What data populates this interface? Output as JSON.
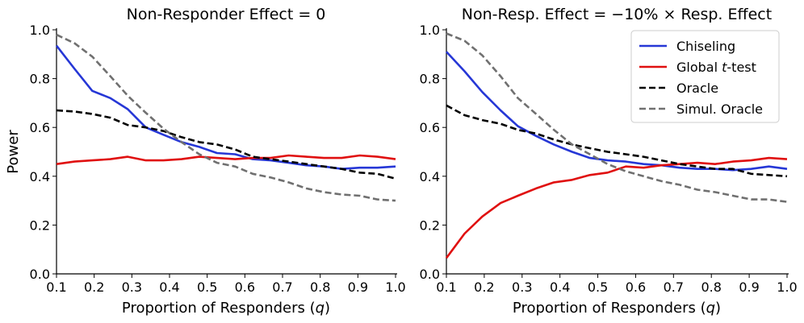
{
  "chart_data": [
    {
      "type": "line",
      "title": "Non-Responder Effect $= 0$",
      "title_display": "Non-Responder Effect  = 0",
      "xlabel": "Proportion of Responders (q)",
      "ylabel": "Power",
      "xlim": [
        0.1,
        1.0
      ],
      "ylim": [
        0.0,
        1.0
      ],
      "xticks": [
        "0.1",
        "0.2",
        "0.3",
        "0.4",
        "0.5",
        "0.6",
        "0.7",
        "0.8",
        "0.9",
        "1.0"
      ],
      "yticks": [
        "0.0",
        "0.2",
        "0.4",
        "0.6",
        "0.8",
        "1.0"
      ],
      "x": [
        0.1,
        0.148,
        0.195,
        0.243,
        0.289,
        0.337,
        0.384,
        0.432,
        0.479,
        0.526,
        0.574,
        0.621,
        0.668,
        0.716,
        0.763,
        0.81,
        0.857,
        0.905,
        0.952,
        1.0
      ],
      "series": [
        {
          "name": "Chiseling",
          "color": "#2637d6",
          "dash": "solid",
          "values": [
            0.935,
            0.84,
            0.75,
            0.72,
            0.675,
            0.6,
            0.57,
            0.54,
            0.52,
            0.495,
            0.49,
            0.47,
            0.465,
            0.455,
            0.445,
            0.44,
            0.43,
            0.435,
            0.435,
            0.44
          ]
        },
        {
          "name": "Global t-test",
          "color": "#e01010",
          "dash": "solid",
          "values": [
            0.45,
            0.46,
            0.465,
            0.47,
            0.48,
            0.465,
            0.465,
            0.47,
            0.48,
            0.475,
            0.47,
            0.475,
            0.475,
            0.485,
            0.48,
            0.475,
            0.475,
            0.485,
            0.48,
            0.47
          ]
        },
        {
          "name": "Oracle",
          "color": "#000000",
          "dash": "dashed",
          "values": [
            0.67,
            0.665,
            0.655,
            0.64,
            0.61,
            0.6,
            0.585,
            0.56,
            0.54,
            0.53,
            0.51,
            0.48,
            0.47,
            0.46,
            0.45,
            0.44,
            0.43,
            0.415,
            0.41,
            0.39
          ]
        },
        {
          "name": "Simul. Oracle",
          "color": "#707070",
          "dash": "dashed",
          "values": [
            0.98,
            0.945,
            0.89,
            0.81,
            0.73,
            0.66,
            0.595,
            0.54,
            0.49,
            0.455,
            0.44,
            0.41,
            0.395,
            0.375,
            0.35,
            0.335,
            0.325,
            0.32,
            0.305,
            0.3
          ]
        }
      ]
    },
    {
      "type": "line",
      "title": "Non-Resp. Effect $= -10\\% \\times$ Resp. Effect",
      "title_display": "Non-Resp. Effect  = −10% ×  Resp. Effect",
      "xlabel": "Proportion of Responders (q)",
      "ylabel": "",
      "xlim": [
        0.1,
        1.0
      ],
      "ylim": [
        0.0,
        1.0
      ],
      "xticks": [
        "0.1",
        "0.2",
        "0.3",
        "0.4",
        "0.5",
        "0.6",
        "0.7",
        "0.8",
        "0.9",
        "1.0"
      ],
      "yticks": [
        "0.0",
        "0.2",
        "0.4",
        "0.6",
        "0.8",
        "1.0"
      ],
      "legend": "top-right",
      "x": [
        0.1,
        0.148,
        0.195,
        0.243,
        0.289,
        0.337,
        0.384,
        0.432,
        0.479,
        0.526,
        0.574,
        0.621,
        0.668,
        0.716,
        0.763,
        0.81,
        0.857,
        0.905,
        0.952,
        1.0
      ],
      "series": [
        {
          "name": "Chiseling",
          "color": "#2637d6",
          "dash": "solid",
          "values": [
            0.91,
            0.83,
            0.745,
            0.67,
            0.605,
            0.565,
            0.53,
            0.5,
            0.475,
            0.465,
            0.46,
            0.45,
            0.445,
            0.435,
            0.43,
            0.43,
            0.425,
            0.43,
            0.44,
            0.43
          ]
        },
        {
          "name": "Global t-test",
          "color": "#e01010",
          "dash": "solid",
          "values": [
            0.065,
            0.165,
            0.235,
            0.29,
            0.32,
            0.35,
            0.375,
            0.385,
            0.405,
            0.415,
            0.44,
            0.435,
            0.445,
            0.45,
            0.455,
            0.45,
            0.46,
            0.465,
            0.475,
            0.47
          ]
        },
        {
          "name": "Oracle",
          "color": "#000000",
          "dash": "dashed",
          "values": [
            0.69,
            0.65,
            0.63,
            0.615,
            0.59,
            0.575,
            0.55,
            0.53,
            0.515,
            0.5,
            0.49,
            0.48,
            0.465,
            0.45,
            0.44,
            0.43,
            0.43,
            0.41,
            0.405,
            0.4
          ]
        },
        {
          "name": "Simul. Oracle",
          "color": "#707070",
          "dash": "dashed",
          "values": [
            0.985,
            0.955,
            0.895,
            0.81,
            0.72,
            0.655,
            0.59,
            0.53,
            0.49,
            0.45,
            0.42,
            0.4,
            0.38,
            0.365,
            0.345,
            0.335,
            0.32,
            0.305,
            0.305,
            0.295
          ]
        }
      ]
    }
  ],
  "legend_title_parts": {
    "global_prefix": "Global ",
    "global_italic": "t",
    "global_suffix": "-test",
    "xlabel_prefix": "Proportion of Responders (",
    "xlabel_italic": "q",
    "xlabel_suffix": ")"
  }
}
